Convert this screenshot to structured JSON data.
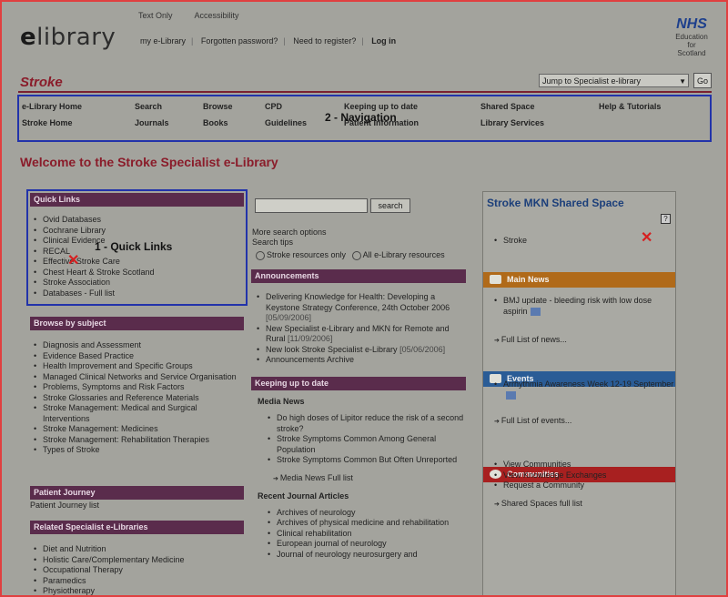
{
  "top": {
    "links": [
      "Text Only",
      "Accessibility"
    ]
  },
  "logo": {
    "e": "e",
    "rest": "library"
  },
  "account": {
    "links": [
      "my e-Library",
      "Forgotten password?",
      "Need to register?",
      "Log in"
    ]
  },
  "nhs": {
    "badge": "NHS",
    "line1": "Education",
    "line2": "for",
    "line3": "Scotland"
  },
  "section_title": "Stroke",
  "jump": {
    "label": "Jump to Specialist e-library",
    "go": "Go"
  },
  "nav": {
    "row1": [
      "e-Library Home",
      "Search",
      "Browse",
      "CPD",
      "Keeping up to date",
      "Shared Space",
      "Help & Tutorials"
    ],
    "row2": [
      "Stroke Home",
      "Journals",
      "Books",
      "Guidelines",
      "Patient Information",
      "Library Services"
    ],
    "note": "2 - Navigation"
  },
  "welcome": "Welcome to the Stroke Specialist e-Library",
  "quick_links": {
    "title": "Quick Links",
    "note": "1 - Quick Links",
    "items": [
      "Ovid Databases",
      "Cochrane Library",
      "Clinical Evidence",
      "RECAL",
      "Effective Stroke Care",
      "Chest Heart & Stroke Scotland",
      "Stroke Association",
      "Databases - Full list"
    ]
  },
  "browse": {
    "title": "Browse by subject",
    "items": [
      "Diagnosis and Assessment",
      "Evidence Based Practice",
      "Health Improvement and Specific Groups",
      "Managed Clinical Networks and Service Organisation",
      "Problems, Symptoms and Risk Factors",
      "Stroke Glossaries and Reference Materials",
      "Stroke Management: Medical and Surgical Interventions",
      "Stroke Management: Medicines",
      "Stroke Management: Rehabilitation Therapies",
      "Types of Stroke"
    ]
  },
  "patient": {
    "title": "Patient Journey",
    "item": "Patient Journey list"
  },
  "related": {
    "title": "Related Specialist e-Libraries",
    "items": [
      "Diet and Nutrition",
      "Holistic Care/Complementary Medicine",
      "Occupational Therapy",
      "Paramedics",
      "Physiotherapy"
    ]
  },
  "search": {
    "button": "search",
    "more": "More search options",
    "tips": "Search tips",
    "opt1": "Stroke resources only",
    "opt2": "All e-Library resources"
  },
  "announcements": {
    "title": "Announcements",
    "items": [
      {
        "text": "Delivering Knowledge for Health: Developing a Keystone Strategy Conference, 24th October 2006",
        "date": "[05/09/2006]"
      },
      {
        "text": "New Specialist e-Library and MKN for Remote and Rural",
        "date": "[11/09/2006]"
      },
      {
        "text": "New look Stroke Specialist e-Library",
        "date": "[05/06/2006]"
      },
      {
        "text": "Announcements Archive",
        "date": ""
      }
    ]
  },
  "keeping": {
    "title": "Keeping up to date",
    "media_title": "Media News",
    "media_items": [
      "Do high doses of Lipitor reduce the risk of a second stroke?",
      "Stroke Symptoms Common Among General Population",
      "Stroke Symptoms Common But Often Unreported"
    ],
    "media_link": "Media News Full list",
    "journals_title": "Recent Journal Articles",
    "journals": [
      "Archives of neurology",
      "Archives of physical medicine and rehabilitation",
      "Clinical rehabilitation",
      "European journal of neurology",
      "Journal of neurology neurosurgery and"
    ]
  },
  "shared": {
    "title": "Stroke MKN Shared Space",
    "help": "?",
    "stroke_item": "Stroke",
    "news_title": "Main News",
    "news_item": "BMJ update - bleeding risk with low dose aspirin",
    "news_link": "Full List of news...",
    "events_title": "Events",
    "event_item": "Arrhythmia Awareness Week 12-19 September",
    "events_link": "Full List of events...",
    "communities_title": "Communities",
    "communities": [
      "View Communities",
      "View Knowledge Exchanges",
      "Request a Community"
    ],
    "shared_link": "Shared Spaces full list"
  },
  "colors": {
    "news_bar": "#b06a1a",
    "events_bar": "#2a5c96",
    "communities_bar": "#a82020",
    "nav_box": "#2233aa"
  }
}
